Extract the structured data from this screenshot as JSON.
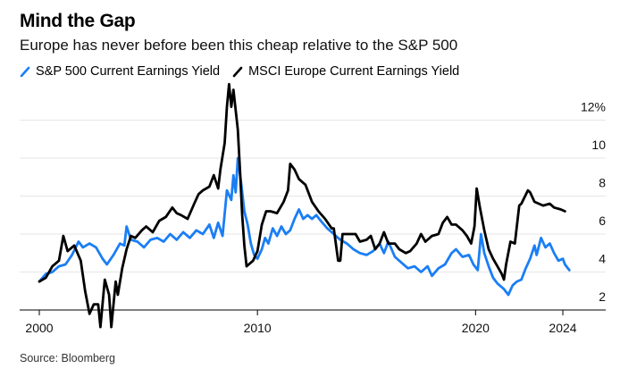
{
  "title": "Mind the Gap",
  "subtitle": "Europe has never before been this cheap relative to the S&P 500",
  "source": "Source: Bloomberg",
  "colors": {
    "sp500": "#1a7ef5",
    "msci": "#000000",
    "grid": "#e6e6e6",
    "axis": "#000000"
  },
  "chart_data": {
    "type": "line",
    "title": "Mind the Gap",
    "subtitle": "Europe has never before been this cheap relative to the S&P 500",
    "xlabel": "",
    "ylabel": "",
    "xlim": [
      2000,
      2025.9
    ],
    "ylim": [
      2,
      14
    ],
    "grid": true,
    "legend": "top-left",
    "x_ticks": [
      2000,
      2010,
      2020,
      2024
    ],
    "x_tick_labels": [
      "2000",
      "2010",
      "2020",
      "2024"
    ],
    "y_ticks": [
      2,
      4,
      6,
      8,
      10,
      12
    ],
    "y_tick_labels": [
      "2",
      "4",
      "6",
      "8",
      "10",
      "12%"
    ],
    "series": [
      {
        "name": "S&P 500 Current Earnings Yield",
        "color": "#1a7ef5",
        "points": [
          [
            2000.0,
            3.5
          ],
          [
            2000.3,
            3.9
          ],
          [
            2000.6,
            4.0
          ],
          [
            2000.9,
            4.3
          ],
          [
            2001.2,
            4.4
          ],
          [
            2001.5,
            4.9
          ],
          [
            2001.8,
            5.6
          ],
          [
            2002.0,
            5.3
          ],
          [
            2002.3,
            5.5
          ],
          [
            2002.6,
            5.3
          ],
          [
            2002.9,
            4.7
          ],
          [
            2003.1,
            4.4
          ],
          [
            2003.4,
            4.9
          ],
          [
            2003.7,
            5.5
          ],
          [
            2003.9,
            5.4
          ],
          [
            2004.0,
            6.4
          ],
          [
            2004.2,
            5.7
          ],
          [
            2004.5,
            5.6
          ],
          [
            2004.8,
            5.3
          ],
          [
            2005.1,
            5.7
          ],
          [
            2005.4,
            5.8
          ],
          [
            2005.7,
            5.6
          ],
          [
            2006.0,
            6.0
          ],
          [
            2006.3,
            5.7
          ],
          [
            2006.6,
            6.1
          ],
          [
            2006.9,
            5.8
          ],
          [
            2007.2,
            6.2
          ],
          [
            2007.5,
            6.0
          ],
          [
            2007.8,
            6.5
          ],
          [
            2008.0,
            5.8
          ],
          [
            2008.2,
            6.6
          ],
          [
            2008.4,
            5.9
          ],
          [
            2008.6,
            8.3
          ],
          [
            2008.8,
            7.8
          ],
          [
            2008.9,
            9.1
          ],
          [
            2009.0,
            8.2
          ],
          [
            2009.1,
            10.0
          ],
          [
            2009.25,
            8.7
          ],
          [
            2009.4,
            7.2
          ],
          [
            2009.55,
            6.5
          ],
          [
            2009.7,
            5.5
          ],
          [
            2009.85,
            4.9
          ],
          [
            2010.0,
            4.7
          ],
          [
            2010.2,
            5.2
          ],
          [
            2010.35,
            5.8
          ],
          [
            2010.5,
            5.5
          ],
          [
            2010.7,
            6.3
          ],
          [
            2010.9,
            5.9
          ],
          [
            2011.1,
            6.4
          ],
          [
            2011.3,
            6.0
          ],
          [
            2011.5,
            6.2
          ],
          [
            2011.7,
            6.8
          ],
          [
            2011.9,
            7.3
          ],
          [
            2012.1,
            6.8
          ],
          [
            2012.3,
            7.0
          ],
          [
            2012.5,
            6.8
          ],
          [
            2012.7,
            7.0
          ],
          [
            2012.9,
            6.7
          ],
          [
            2013.2,
            6.3
          ],
          [
            2013.5,
            6.0
          ],
          [
            2013.8,
            5.7
          ],
          [
            2014.1,
            5.5
          ],
          [
            2014.4,
            5.2
          ],
          [
            2014.7,
            5.0
          ],
          [
            2015.0,
            4.9
          ],
          [
            2015.3,
            5.1
          ],
          [
            2015.6,
            5.5
          ],
          [
            2015.8,
            5.0
          ],
          [
            2016.0,
            5.6
          ],
          [
            2016.3,
            4.8
          ],
          [
            2016.6,
            4.5
          ],
          [
            2016.9,
            4.2
          ],
          [
            2017.2,
            4.3
          ],
          [
            2017.5,
            4.0
          ],
          [
            2017.8,
            4.3
          ],
          [
            2018.0,
            3.8
          ],
          [
            2018.3,
            4.2
          ],
          [
            2018.6,
            4.4
          ],
          [
            2018.9,
            5.0
          ],
          [
            2019.1,
            5.2
          ],
          [
            2019.4,
            4.8
          ],
          [
            2019.7,
            4.9
          ],
          [
            2019.9,
            4.4
          ],
          [
            2020.1,
            4.1
          ],
          [
            2020.25,
            6.0
          ],
          [
            2020.4,
            5.0
          ],
          [
            2020.6,
            4.3
          ],
          [
            2020.8,
            3.7
          ],
          [
            2021.0,
            3.4
          ],
          [
            2021.3,
            3.1
          ],
          [
            2021.5,
            2.8
          ],
          [
            2021.7,
            3.3
          ],
          [
            2021.9,
            3.5
          ],
          [
            2022.1,
            3.6
          ],
          [
            2022.3,
            4.2
          ],
          [
            2022.5,
            4.7
          ],
          [
            2022.7,
            5.4
          ],
          [
            2022.8,
            4.9
          ],
          [
            2023.0,
            5.8
          ],
          [
            2023.2,
            5.3
          ],
          [
            2023.4,
            5.5
          ],
          [
            2023.6,
            5.0
          ],
          [
            2023.8,
            4.6
          ],
          [
            2024.0,
            4.7
          ],
          [
            2024.1,
            4.4
          ],
          [
            2024.3,
            4.1
          ]
        ]
      },
      {
        "name": "MSCI Europe Current Earnings Yield",
        "color": "#000000",
        "points": [
          [
            2000.0,
            3.5
          ],
          [
            2000.3,
            3.7
          ],
          [
            2000.6,
            4.3
          ],
          [
            2000.9,
            4.6
          ],
          [
            2001.1,
            5.9
          ],
          [
            2001.3,
            5.1
          ],
          [
            2001.6,
            5.4
          ],
          [
            2001.9,
            4.6
          ],
          [
            2002.1,
            3.0
          ],
          [
            2002.3,
            1.8
          ],
          [
            2002.5,
            2.3
          ],
          [
            2002.7,
            2.3
          ],
          [
            2002.8,
            1.1
          ],
          [
            2003.0,
            3.6
          ],
          [
            2003.2,
            2.8
          ],
          [
            2003.3,
            1.1
          ],
          [
            2003.5,
            3.5
          ],
          [
            2003.6,
            2.8
          ],
          [
            2003.8,
            4.2
          ],
          [
            2004.0,
            5.2
          ],
          [
            2004.2,
            5.9
          ],
          [
            2004.4,
            5.8
          ],
          [
            2004.7,
            6.2
          ],
          [
            2004.9,
            6.4
          ],
          [
            2005.2,
            6.1
          ],
          [
            2005.5,
            6.7
          ],
          [
            2005.8,
            6.9
          ],
          [
            2006.1,
            7.4
          ],
          [
            2006.3,
            7.1
          ],
          [
            2006.5,
            7.0
          ],
          [
            2006.8,
            6.8
          ],
          [
            2007.1,
            7.6
          ],
          [
            2007.3,
            8.1
          ],
          [
            2007.5,
            8.3
          ],
          [
            2007.8,
            8.5
          ],
          [
            2008.0,
            9.1
          ],
          [
            2008.2,
            8.4
          ],
          [
            2008.3,
            9.4
          ],
          [
            2008.5,
            10.8
          ],
          [
            2008.6,
            12.7
          ],
          [
            2008.7,
            13.9
          ],
          [
            2008.8,
            12.7
          ],
          [
            2008.9,
            13.6
          ],
          [
            2009.1,
            11.5
          ],
          [
            2009.2,
            9.4
          ],
          [
            2009.3,
            7.0
          ],
          [
            2009.4,
            5.4
          ],
          [
            2009.5,
            4.3
          ],
          [
            2009.8,
            4.6
          ],
          [
            2010.0,
            5.1
          ],
          [
            2010.2,
            6.5
          ],
          [
            2010.4,
            7.2
          ],
          [
            2010.6,
            7.2
          ],
          [
            2010.9,
            7.1
          ],
          [
            2011.2,
            7.7
          ],
          [
            2011.4,
            8.3
          ],
          [
            2011.5,
            9.7
          ],
          [
            2011.7,
            9.4
          ],
          [
            2011.9,
            8.9
          ],
          [
            2012.2,
            8.6
          ],
          [
            2012.5,
            7.7
          ],
          [
            2012.8,
            7.2
          ],
          [
            2013.1,
            6.8
          ],
          [
            2013.4,
            6.3
          ],
          [
            2013.5,
            6.3
          ],
          [
            2013.7,
            4.6
          ],
          [
            2013.8,
            4.6
          ],
          [
            2013.9,
            6.0
          ],
          [
            2014.2,
            6.0
          ],
          [
            2014.5,
            6.0
          ],
          [
            2014.7,
            5.6
          ],
          [
            2015.0,
            5.7
          ],
          [
            2015.2,
            5.9
          ],
          [
            2015.4,
            5.2
          ],
          [
            2015.6,
            5.5
          ],
          [
            2015.8,
            6.1
          ],
          [
            2016.0,
            5.5
          ],
          [
            2016.3,
            5.5
          ],
          [
            2016.5,
            5.2
          ],
          [
            2016.8,
            5.0
          ],
          [
            2017.0,
            5.1
          ],
          [
            2017.3,
            5.5
          ],
          [
            2017.5,
            6.0
          ],
          [
            2017.7,
            5.6
          ],
          [
            2018.0,
            5.9
          ],
          [
            2018.3,
            6.0
          ],
          [
            2018.5,
            6.6
          ],
          [
            2018.7,
            6.9
          ],
          [
            2018.9,
            6.5
          ],
          [
            2019.1,
            6.5
          ],
          [
            2019.4,
            6.2
          ],
          [
            2019.6,
            5.9
          ],
          [
            2019.8,
            5.5
          ],
          [
            2019.95,
            6.4
          ],
          [
            2020.05,
            8.4
          ],
          [
            2020.2,
            7.4
          ],
          [
            2020.4,
            6.2
          ],
          [
            2020.6,
            5.2
          ],
          [
            2020.8,
            4.7
          ],
          [
            2021.0,
            4.3
          ],
          [
            2021.2,
            3.9
          ],
          [
            2021.3,
            3.6
          ],
          [
            2021.4,
            4.4
          ],
          [
            2021.6,
            5.6
          ],
          [
            2021.8,
            5.5
          ],
          [
            2022.0,
            7.5
          ],
          [
            2022.1,
            7.6
          ],
          [
            2022.4,
            8.3
          ],
          [
            2022.5,
            8.2
          ],
          [
            2022.7,
            7.7
          ],
          [
            2022.9,
            7.6
          ],
          [
            2023.1,
            7.5
          ],
          [
            2023.4,
            7.6
          ],
          [
            2023.6,
            7.4
          ],
          [
            2023.9,
            7.3
          ],
          [
            2024.1,
            7.2
          ]
        ]
      }
    ]
  }
}
